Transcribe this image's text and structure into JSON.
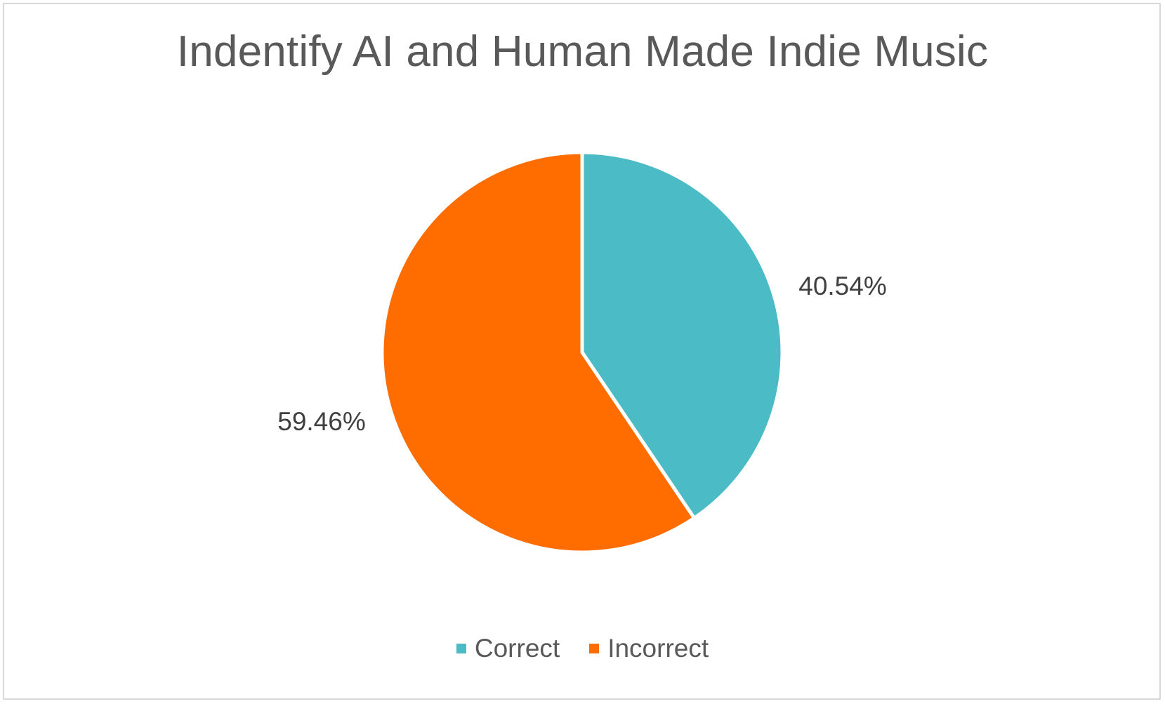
{
  "chart_data": {
    "type": "pie",
    "title": "Indentify AI and Human Made Indie Music",
    "categories": [
      "Correct",
      "Incorrect"
    ],
    "values": [
      40.54,
      59.46
    ],
    "labels": [
      "40.54%",
      "59.46%"
    ],
    "colors": [
      "#4bbcc6",
      "#ff6d00"
    ],
    "legend_position": "bottom",
    "start_angle": "12 o'clock",
    "direction": "clockwise"
  }
}
